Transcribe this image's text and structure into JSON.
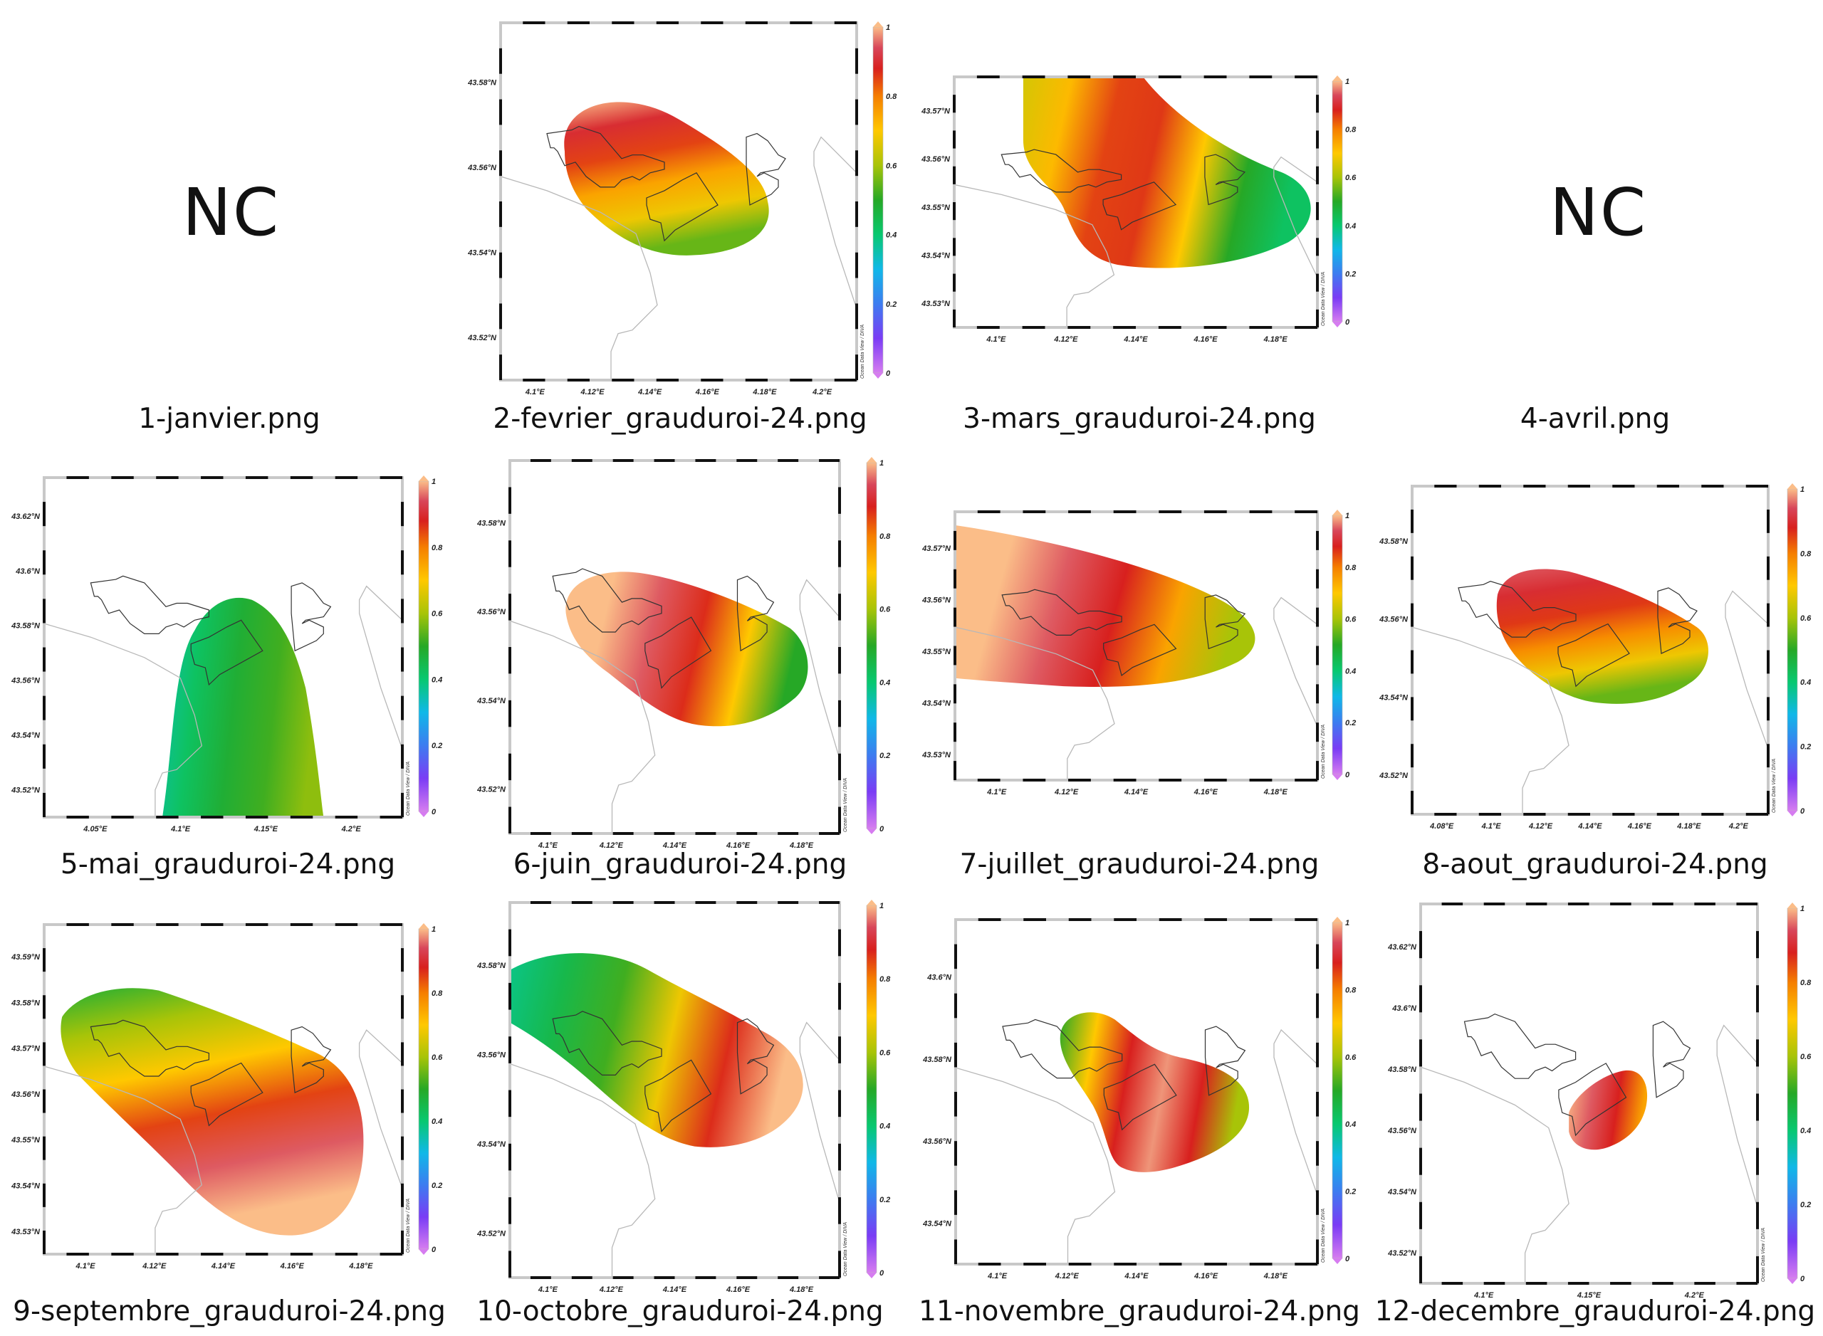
{
  "colormap": {
    "name": "odv-rainbow",
    "stops": [
      {
        "v": 0.0,
        "c": "#d67cf0"
      },
      {
        "v": 0.1,
        "c": "#7a3cf5"
      },
      {
        "v": 0.2,
        "c": "#3d7cf0"
      },
      {
        "v": 0.3,
        "c": "#10b8e8"
      },
      {
        "v": 0.4,
        "c": "#08c870"
      },
      {
        "v": 0.5,
        "c": "#26a826"
      },
      {
        "v": 0.6,
        "c": "#a8c408"
      },
      {
        "v": 0.7,
        "c": "#ffc800"
      },
      {
        "v": 0.8,
        "c": "#f57e00"
      },
      {
        "v": 0.88,
        "c": "#d8201e"
      },
      {
        "v": 0.94,
        "c": "#d8465a"
      },
      {
        "v": 1.0,
        "c": "#fbbd88"
      }
    ],
    "ticks": [
      "0",
      "0.2",
      "0.4",
      "0.6",
      "0.8",
      "1"
    ],
    "range": [
      0,
      1
    ]
  },
  "credit": "Ocean Data View / DIVA",
  "panels": [
    {
      "id": "jan",
      "caption": "1-janvier.png",
      "status": "NC"
    },
    {
      "id": "feb",
      "caption": "2-fevrier_grauduroi-24.png",
      "lon_ticks": [
        "4.1°E",
        "4.12°E",
        "4.14°E",
        "4.16°E",
        "4.18°E",
        "4.2°E"
      ],
      "lat_ticks": [
        "43.52°N",
        "43.54°N",
        "43.56°N",
        "43.58°N"
      ],
      "field": {
        "direction": "top-to-bottom",
        "values": [
          1.0,
          0.9,
          0.85,
          0.75,
          0.68,
          0.55
        ]
      }
    },
    {
      "id": "mar",
      "caption": "3-mars_grauduroi-24.png",
      "lon_ticks": [
        "4.1°E",
        "4.12°E",
        "4.14°E",
        "4.16°E",
        "4.18°E"
      ],
      "lat_ticks": [
        "43.53°N",
        "43.54°N",
        "43.55°N",
        "43.56°N",
        "43.57°N"
      ],
      "field": {
        "direction": "left-to-right",
        "values": [
          0.65,
          0.72,
          0.85,
          0.86,
          0.7,
          0.5,
          0.42
        ]
      }
    },
    {
      "id": "apr",
      "caption": "4-avril.png",
      "status": "NC"
    },
    {
      "id": "may",
      "caption": "5-mai_grauduroi-24.png",
      "lon_ticks": [
        "4.05°E",
        "4.1°E",
        "4.15°E",
        "4.2°E"
      ],
      "lat_ticks": [
        "43.52°N",
        "43.54°N",
        "43.56°N",
        "43.58°N",
        "43.6°N",
        "43.62°N"
      ],
      "field": {
        "direction": "left-to-right",
        "values": [
          0.35,
          0.42,
          0.48,
          0.52,
          0.58
        ]
      }
    },
    {
      "id": "jun",
      "caption": "6-juin_grauduroi-24.png",
      "lon_ticks": [
        "4.1°E",
        "4.12°E",
        "4.14°E",
        "4.16°E",
        "4.18°E"
      ],
      "lat_ticks": [
        "43.52°N",
        "43.54°N",
        "43.56°N",
        "43.58°N"
      ],
      "field": {
        "direction": "left-to-right",
        "values": [
          1.0,
          1.0,
          0.95,
          0.87,
          0.7,
          0.5
        ]
      }
    },
    {
      "id": "jul",
      "caption": "7-juillet_grauduroi-24.png",
      "lon_ticks": [
        "4.1°E",
        "4.12°E",
        "4.14°E",
        "4.16°E",
        "4.18°E"
      ],
      "lat_ticks": [
        "43.53°N",
        "43.54°N",
        "43.55°N",
        "43.56°N",
        "43.57°N"
      ],
      "field": {
        "direction": "left-to-right",
        "values": [
          1.0,
          1.0,
          0.95,
          0.88,
          0.75,
          0.6
        ]
      }
    },
    {
      "id": "aug",
      "caption": "8-aout_grauduroi-24.png",
      "lon_ticks": [
        "4.08°E",
        "4.1°E",
        "4.12°E",
        "4.14°E",
        "4.16°E",
        "4.18°E",
        "4.2°E"
      ],
      "lat_ticks": [
        "43.52°N",
        "43.54°N",
        "43.56°N",
        "43.58°N"
      ],
      "field": {
        "direction": "top-to-bottom",
        "values": [
          0.95,
          0.9,
          0.86,
          0.78,
          0.68,
          0.55
        ]
      }
    },
    {
      "id": "sep",
      "caption": "9-septembre_grauduroi-24.png",
      "lon_ticks": [
        "4.1°E",
        "4.12°E",
        "4.14°E",
        "4.16°E",
        "4.18°E"
      ],
      "lat_ticks": [
        "43.53°N",
        "43.54°N",
        "43.55°N",
        "43.56°N",
        "43.57°N",
        "43.58°N",
        "43.59°N"
      ],
      "field": {
        "direction": "top-to-bottom",
        "values": [
          0.48,
          0.6,
          0.7,
          0.85,
          0.95,
          1.0
        ]
      }
    },
    {
      "id": "oct",
      "caption": "10-octobre_grauduroi-24.png",
      "lon_ticks": [
        "4.1°E",
        "4.12°E",
        "4.14°E",
        "4.16°E",
        "4.18°E"
      ],
      "lat_ticks": [
        "43.52°N",
        "43.54°N",
        "43.56°N",
        "43.58°N"
      ],
      "field": {
        "direction": "left-to-right",
        "values": [
          0.38,
          0.45,
          0.52,
          0.68,
          0.87,
          1.0
        ]
      }
    },
    {
      "id": "nov",
      "caption": "11-novembre_grauduroi-24.png",
      "lon_ticks": [
        "4.1°E",
        "4.12°E",
        "4.14°E",
        "4.16°E",
        "4.18°E"
      ],
      "lat_ticks": [
        "43.54°N",
        "43.56°N",
        "43.58°N",
        "43.6°N"
      ],
      "field": {
        "direction": "left-to-right",
        "values": [
          0.5,
          0.7,
          0.88,
          0.98,
          0.88,
          0.6
        ]
      }
    },
    {
      "id": "dec",
      "caption": "12-decembre_grauduroi-24.png",
      "lon_ticks": [
        "4.1°E",
        "4.15°E",
        "4.2°E"
      ],
      "lat_ticks": [
        "43.52°N",
        "43.54°N",
        "43.56°N",
        "43.58°N",
        "43.6°N",
        "43.62°N"
      ],
      "field": {
        "direction": "left-to-right",
        "values": [
          1.0,
          0.95,
          0.88,
          0.75
        ]
      }
    }
  ]
}
